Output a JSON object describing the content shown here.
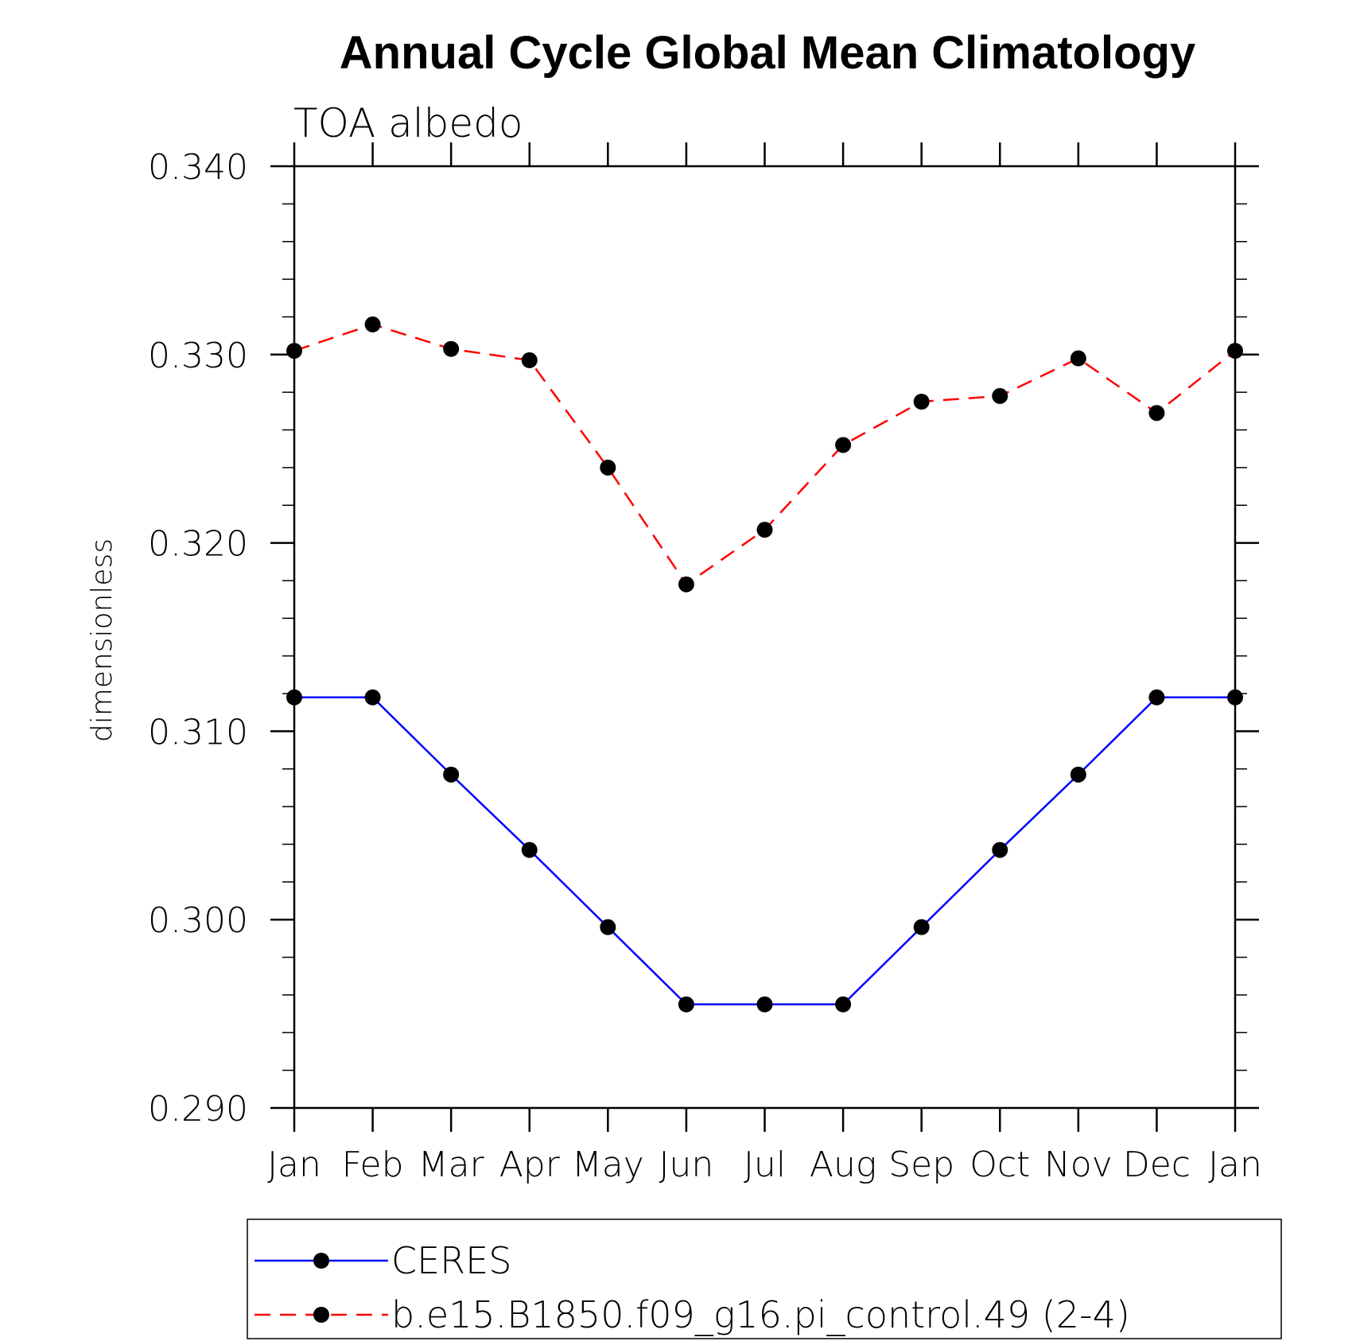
{
  "chart_data": {
    "type": "line",
    "title": "Annual Cycle Global Mean Climatology",
    "subtitle": "TOA albedo",
    "ylabel": "dimensionless",
    "xlabel": "",
    "categories": [
      "Jan",
      "Feb",
      "Mar",
      "Apr",
      "May",
      "Jun",
      "Jul",
      "Aug",
      "Sep",
      "Oct",
      "Nov",
      "Dec",
      "Jan"
    ],
    "ylim": [
      0.29,
      0.34
    ],
    "yticks": [
      "0.290",
      "0.300",
      "0.310",
      "0.320",
      "0.330",
      "0.340"
    ],
    "grid": false,
    "legend_position": "bottom",
    "series": [
      {
        "name": "CERES",
        "color": "#0000ff",
        "dash": "solid",
        "values": [
          0.3118,
          0.3118,
          0.3077,
          0.3037,
          0.2996,
          0.2955,
          0.2955,
          0.2955,
          0.2996,
          0.3037,
          0.3077,
          0.3118,
          0.3118
        ]
      },
      {
        "name": "b.e15.B1850.f09_g16.pi_control.49 (2-4)",
        "color": "#ff0000",
        "dash": "dashed",
        "values": [
          0.3302,
          0.3316,
          0.3303,
          0.3297,
          0.324,
          0.3178,
          0.3207,
          0.3252,
          0.3275,
          0.3278,
          0.3298,
          0.3269,
          0.3302
        ]
      }
    ]
  }
}
